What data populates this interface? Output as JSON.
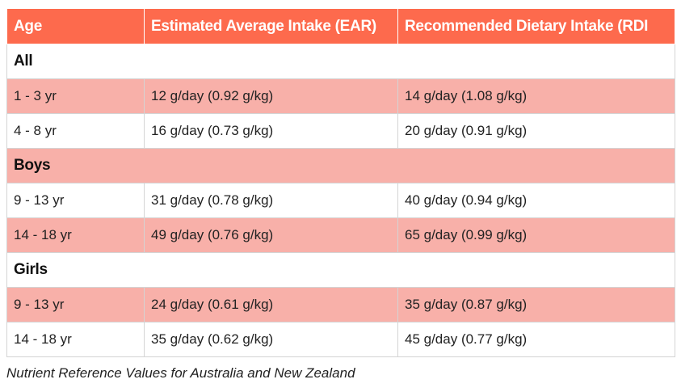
{
  "table": {
    "headers": [
      "Age",
      "Estimated Average Intake (EAR)",
      "Recommended Dietary Intake (RDI"
    ],
    "groups": [
      {
        "label": "All",
        "rows": [
          [
            "1 - 3 yr",
            "12 g/day (0.92 g/kg)",
            "14 g/day (1.08 g/kg)"
          ],
          [
            "4 - 8 yr",
            "16 g/day (0.73 g/kg)",
            "20 g/day (0.91 g/kg)"
          ]
        ]
      },
      {
        "label": "Boys",
        "rows": [
          [
            "9 - 13 yr",
            "31 g/day (0.78 g/kg)",
            "40 g/day (0.94 g/kg)"
          ],
          [
            "14 - 18 yr",
            "49 g/day (0.76 g/kg)",
            "65 g/day (0.99 g/kg)"
          ]
        ]
      },
      {
        "label": "Girls",
        "rows": [
          [
            "9 - 13 yr",
            "24 g/day (0.61 g/kg)",
            "35 g/day (0.87 g/kg)"
          ],
          [
            "14 - 18 yr",
            "35 g/day (0.62 g/kg)",
            "45 g/day (0.77 g/kg)"
          ]
        ]
      }
    ]
  },
  "caption": "Nutrient Reference Values for Australia and New Zealand",
  "colors": {
    "header_background": "#fd6a4d",
    "header_text": "#ffffff",
    "shaded_row": "#f8b0a9",
    "plain_row": "#ffffff"
  }
}
